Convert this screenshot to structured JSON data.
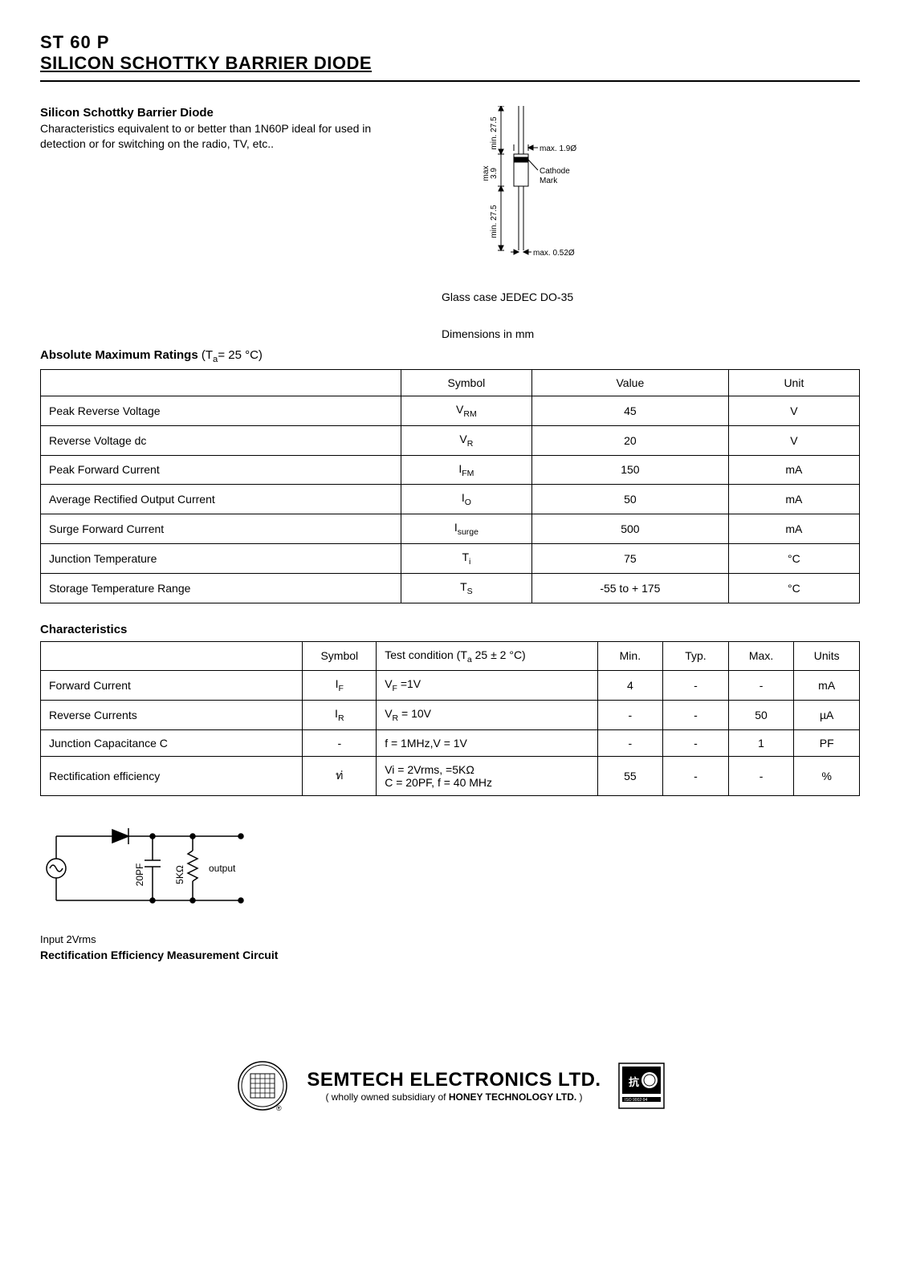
{
  "header": {
    "part_number": "ST 60 P",
    "title": "SILICON SCHOTTKY BARRIER DIODE"
  },
  "intro": {
    "heading": "Silicon Schottky Barrier Diode",
    "body": "Characteristics equivalent to or better than 1N60P ideal for used in detection or for switching on the radio, TV, etc.."
  },
  "package_diagram": {
    "labels": {
      "lead_top": "min. 27.5",
      "body_max": "max",
      "body_len": "3.9",
      "dia_body": "max. 1.9Ø",
      "cathode": "Cathode",
      "mark": "Mark",
      "lead_bot": "min. 27.5",
      "dia_lead": "max. 0.52Ø"
    },
    "caption": "Glass case JEDEC DO-35",
    "dim_note": "Dimensions in mm",
    "colors": {
      "stroke": "#000000",
      "fill": "#ffffff"
    }
  },
  "abs_max": {
    "heading": "Absolute Maximum Ratings",
    "cond_prefix": "(T",
    "cond_sub": "a",
    "cond_suffix": "= 25 °C)",
    "columns": [
      "",
      "Symbol",
      "Value",
      "Unit"
    ],
    "rows": [
      {
        "param": "Peak Reverse Voltage",
        "sym": "V",
        "sub": "RM",
        "value": "45",
        "unit": "V"
      },
      {
        "param": "Reverse Voltage dc",
        "sym": "V",
        "sub": "R",
        "value": "20",
        "unit": "V"
      },
      {
        "param": "Peak Forward Current",
        "sym": "I",
        "sub": "FM",
        "value": "150",
        "unit": "mA"
      },
      {
        "param": "Average Rectified Output Current",
        "sym": "I",
        "sub": "O",
        "value": "50",
        "unit": "mA"
      },
      {
        "param": "Surge Forward Current",
        "sym": "I",
        "sub": "surge",
        "value": "500",
        "unit": "mA"
      },
      {
        "param": "Junction Temperature",
        "sym": "T",
        "sub": "i",
        "value": "75",
        "unit": "°C"
      },
      {
        "param": "Storage Temperature Range",
        "sym": "T",
        "sub": "S",
        "value": "-55 to + 175",
        "unit": "°C"
      }
    ],
    "col_widths_pct": [
      44,
      16,
      24,
      16
    ]
  },
  "characteristics": {
    "heading": "Characteristics",
    "columns": [
      "",
      "Symbol",
      "Test condition (Tₐ 25 ± 2 °C)",
      "Min.",
      "Typ.",
      "Max.",
      "Units"
    ],
    "test_cond_label_prefix": "Test condition (T",
    "test_cond_label_sub": "a",
    "test_cond_label_suffix": " 25 ± 2 °C)",
    "rows": [
      {
        "param": "Forward Current",
        "sym": "I",
        "sub": "F",
        "cond": "V_F =1V",
        "min": "4",
        "typ": "-",
        "max": "-",
        "unit": "mA"
      },
      {
        "param": "Reverse  Currents",
        "sym": "I",
        "sub": "R",
        "cond": "V_R = 10V",
        "min": "-",
        "typ": "-",
        "max": "50",
        "unit": "µA"
      },
      {
        "param": "Junction Capacitance C",
        "sym": "-",
        "sub": "",
        "cond": "f = 1MHz,V = 1V",
        "min": "-",
        "typ": "-",
        "max": "1",
        "unit": "PF"
      },
      {
        "param": "Rectification efficiency",
        "sym": "ท่",
        "sub": "",
        "cond": "Vi = 2Vrms, =5KΩ\nC = 20PF, f = 40 MHz",
        "min": "55",
        "typ": "-",
        "max": "-",
        "unit": "%"
      }
    ]
  },
  "circuit": {
    "labels": {
      "cap": "20PF",
      "res": "5KΩ",
      "out": "output",
      "in": "Input  2Vrms"
    },
    "title": "Rectification Efficiency Measurement Circuit"
  },
  "footer": {
    "company": "SEMTECH ELECTRONICS LTD.",
    "sub_prefix": "(  wholly owned subsidiary of ",
    "sub_bold": "HONEY TECHNOLOGY LTD.",
    "sub_suffix": " )"
  }
}
